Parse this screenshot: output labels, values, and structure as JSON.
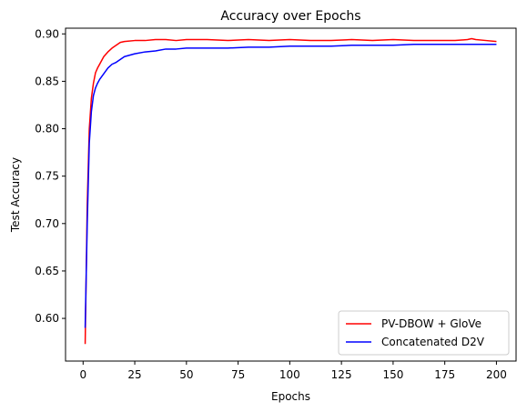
{
  "chart_data": {
    "type": "line",
    "title": "Accuracy over Epochs",
    "xlabel": "Epochs",
    "ylabel": "Test Accuracy",
    "xlim": [
      -8.5,
      209.5
    ],
    "ylim": [
      0.555,
      0.906
    ],
    "xticks": [
      0,
      25,
      50,
      75,
      100,
      125,
      150,
      175,
      200
    ],
    "yticks": [
      0.6,
      0.65,
      0.7,
      0.75,
      0.8,
      0.85,
      0.9
    ],
    "grid": false,
    "legend_position": "bottom-right",
    "series": [
      {
        "name": "PV-DBOW + GloVe",
        "color": "#ff0000",
        "x": [
          1,
          2,
          3,
          4,
          5,
          6,
          7,
          8,
          10,
          12,
          14,
          16,
          18,
          20,
          25,
          30,
          35,
          40,
          45,
          50,
          60,
          70,
          80,
          90,
          100,
          110,
          120,
          130,
          140,
          150,
          160,
          170,
          180,
          186,
          188,
          190,
          195,
          200
        ],
        "y": [
          0.573,
          0.72,
          0.8,
          0.832,
          0.848,
          0.859,
          0.864,
          0.868,
          0.876,
          0.881,
          0.885,
          0.888,
          0.891,
          0.892,
          0.893,
          0.893,
          0.894,
          0.894,
          0.893,
          0.894,
          0.894,
          0.893,
          0.894,
          0.893,
          0.894,
          0.893,
          0.893,
          0.894,
          0.893,
          0.894,
          0.893,
          0.893,
          0.893,
          0.894,
          0.895,
          0.894,
          0.893,
          0.892
        ]
      },
      {
        "name": "Concatenated D2V",
        "color": "#0000ff",
        "x": [
          1,
          2,
          3,
          4,
          5,
          6,
          7,
          8,
          10,
          12,
          14,
          16,
          18,
          20,
          25,
          30,
          35,
          40,
          45,
          50,
          60,
          70,
          80,
          90,
          100,
          110,
          120,
          130,
          140,
          150,
          160,
          170,
          180,
          190,
          200
        ],
        "y": [
          0.59,
          0.7,
          0.785,
          0.818,
          0.835,
          0.843,
          0.848,
          0.852,
          0.858,
          0.864,
          0.868,
          0.87,
          0.873,
          0.876,
          0.879,
          0.881,
          0.882,
          0.884,
          0.884,
          0.885,
          0.885,
          0.885,
          0.886,
          0.886,
          0.887,
          0.887,
          0.887,
          0.888,
          0.888,
          0.888,
          0.889,
          0.889,
          0.889,
          0.889,
          0.889
        ]
      }
    ]
  }
}
